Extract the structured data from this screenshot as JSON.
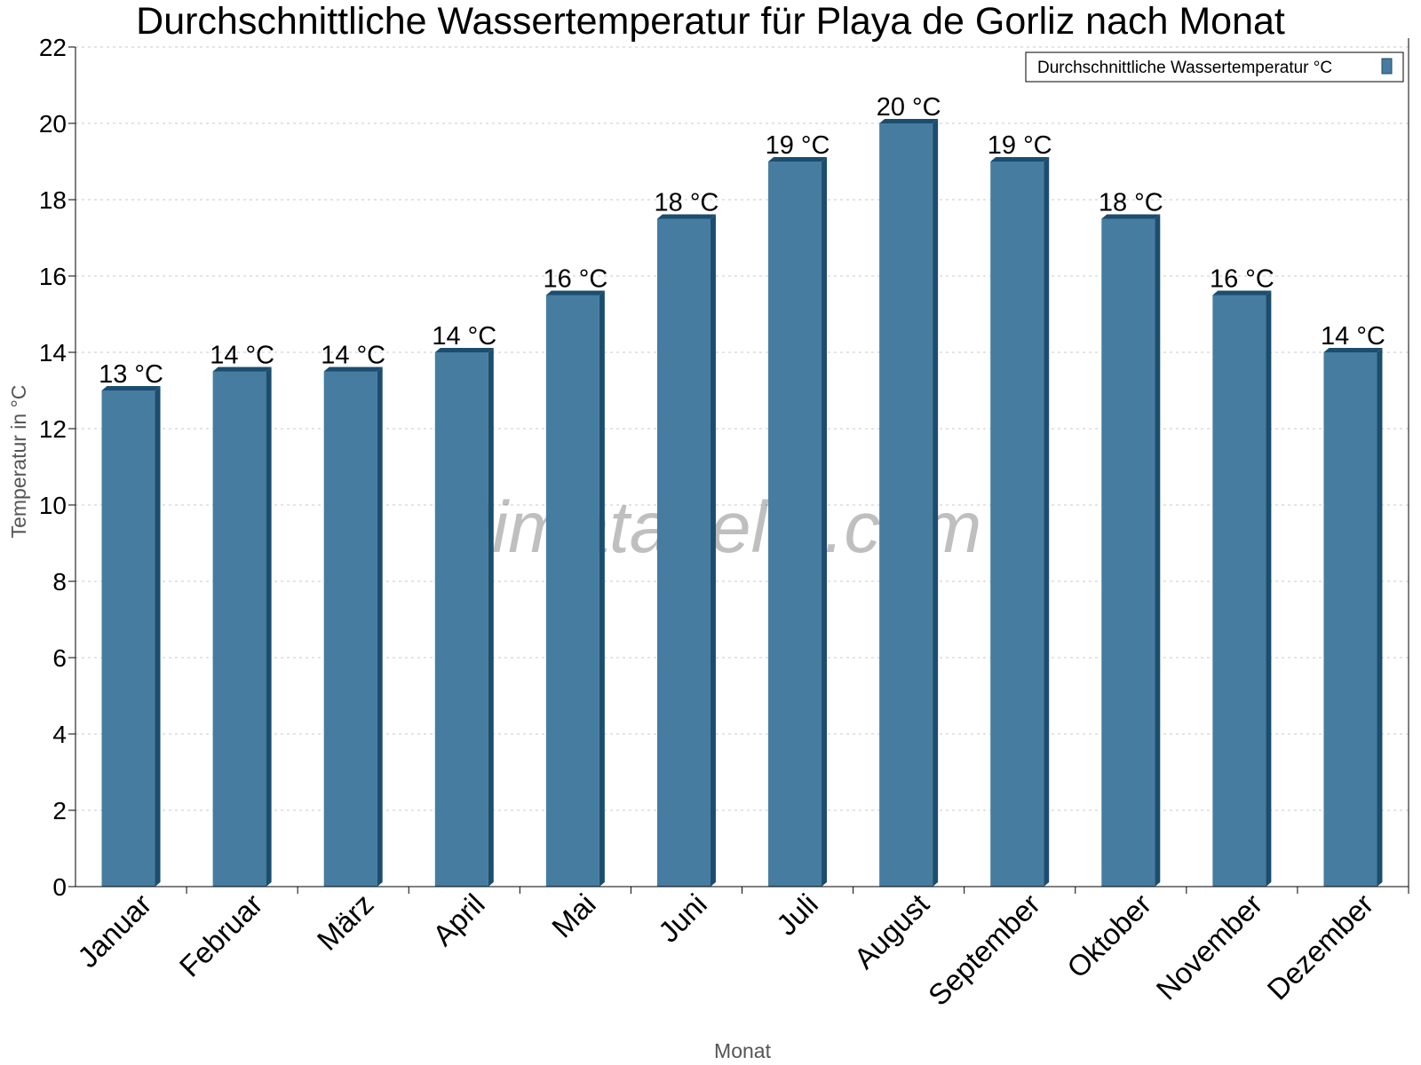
{
  "chart_data": {
    "type": "bar",
    "title": "Durchschnittliche Wassertemperatur für Playa de Gorliz nach Monat",
    "xlabel": "Monat",
    "ylabel": "Temperatur in °C",
    "ylim": [
      0,
      22
    ],
    "yticks": [
      "0",
      "2",
      "4",
      "6",
      "8",
      "10",
      "12",
      "14",
      "16",
      "18",
      "20",
      "22"
    ],
    "grid": true,
    "legend_position": "top-right",
    "categories": [
      "Januar",
      "Februar",
      "März",
      "April",
      "Mai",
      "Juni",
      "Juli",
      "August",
      "September",
      "Oktober",
      "November",
      "Dezember"
    ],
    "series": [
      {
        "name": "Durchschnittliche Wassertemperatur °C",
        "color": "#467c9f",
        "values": [
          13,
          13.5,
          13.5,
          14,
          15.5,
          17.5,
          19,
          20,
          19,
          17.5,
          15.5,
          14
        ],
        "labels": [
          "13 °C",
          "14 °C",
          "14 °C",
          "14 °C",
          "16 °C",
          "18 °C",
          "19 °C",
          "20 °C",
          "19 °C",
          "18 °C",
          "16 °C",
          "14 °C"
        ]
      }
    ],
    "watermark": "klimatabelle.com"
  }
}
